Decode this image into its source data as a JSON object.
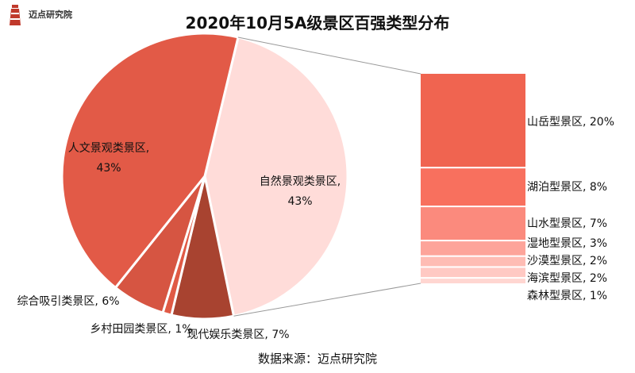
{
  "brand": {
    "name": "迈点研究院"
  },
  "chart_data": {
    "type": "pie",
    "title": "2020年10月5A级景区百强类型分布",
    "source": "数据来源：迈点研究院",
    "slices": [
      {
        "label": "自然景观类景区",
        "value": 43,
        "display": "43%",
        "color": "#ffdcd9"
      },
      {
        "label": "现代娱乐类景区",
        "value": 7,
        "display": "7%",
        "color": "#a84330"
      },
      {
        "label": "乡村田园类景区",
        "value": 1,
        "display": "1%",
        "color": "#e05a45"
      },
      {
        "label": "综合吸引类景区",
        "value": 6,
        "display": "6%",
        "color": "#d65542"
      },
      {
        "label": "人文景观类景区",
        "value": 43,
        "display": "43%",
        "color": "#e25a47"
      }
    ],
    "breakdown": {
      "of": "自然景观类景区",
      "items": [
        {
          "label": "山岳型景区",
          "value": 20,
          "display": "20%",
          "color": "#f06450"
        },
        {
          "label": "湖泊型景区",
          "value": 8,
          "display": "8%",
          "color": "#f8705e"
        },
        {
          "label": "山水型景区",
          "value": 7,
          "display": "7%",
          "color": "#fb8a7d"
        },
        {
          "label": "湿地型景区",
          "value": 3,
          "display": "3%",
          "color": "#fda49a"
        },
        {
          "label": "沙漠型景区",
          "value": 2,
          "display": "2%",
          "color": "#febcb4"
        },
        {
          "label": "海滨型景区",
          "value": 2,
          "display": "2%",
          "color": "#ffc9c3"
        },
        {
          "label": "森林型景区",
          "value": 1,
          "display": "1%",
          "color": "#ffd6d1"
        }
      ]
    }
  }
}
